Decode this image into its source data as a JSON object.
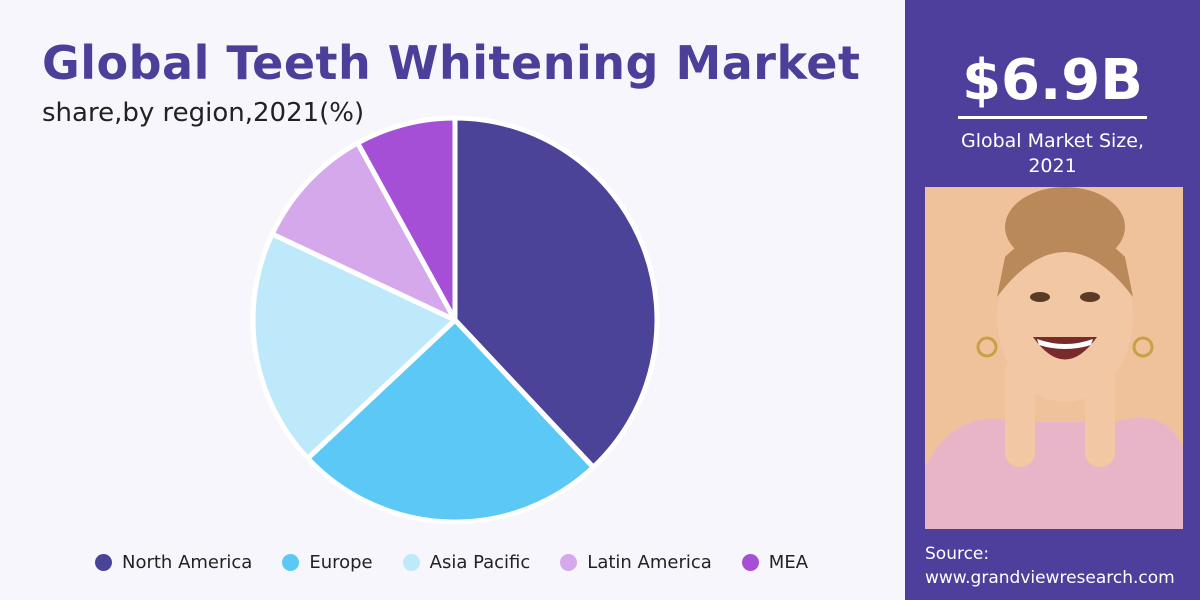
{
  "chart_data": {
    "type": "pie",
    "title": "Global Teeth Whitening Market",
    "subtitle": "share,by region,2021(%)",
    "categories": [
      "North America",
      "Europe",
      "Asia Pacific",
      "Latin America",
      "MEA"
    ],
    "values": [
      38,
      25,
      19,
      10,
      8
    ],
    "colors": [
      "#4b4397",
      "#5bc8f5",
      "#bde9fa",
      "#d4a8ea",
      "#a44fd6"
    ],
    "legend": "bottom"
  },
  "side_panel": {
    "headline": "$6.9B",
    "caption": "Global Market Size, 2021",
    "source_label": "Source:",
    "source": "www.grandviewresearch.com"
  }
}
